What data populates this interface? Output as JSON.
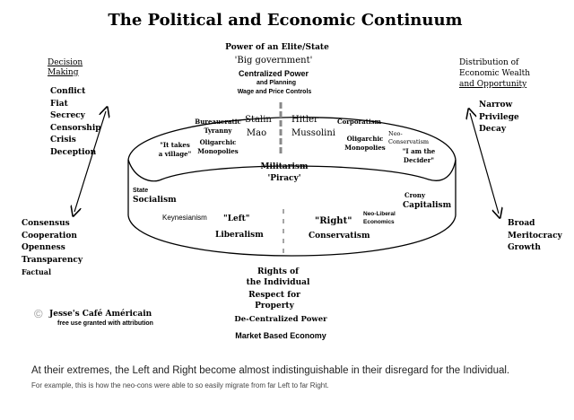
{
  "title": "The Political and Economic Continuum",
  "top_axis": {
    "line1": "Power of an Elite/State",
    "line2": "'Big government'",
    "line3": "Centralized Power",
    "line4": "and Planning",
    "line5": "Wage and Price Controls"
  },
  "bottom_axis": {
    "line1": "Rights of",
    "line2": "the Individual",
    "line3": "Respect for",
    "line4": "Property",
    "line5": "De-Centralized Power",
    "line6": "Market Based Economy"
  },
  "left_panel": {
    "heading1": "Decision",
    "heading2": "Making",
    "top_items": [
      "Conflict",
      "Fiat",
      "Secrecy",
      "Censorship",
      "Crisis",
      "Deception"
    ],
    "bottom_items": [
      "Consensus",
      "Cooperation",
      "Openness",
      "Transparency",
      "Factual"
    ]
  },
  "right_panel": {
    "heading1": "Distribution of",
    "heading2": "Economic Wealth",
    "heading3": "and Opportunity",
    "top_items": [
      "Narrow",
      "Privilege",
      "Decay"
    ],
    "bottom_items": [
      "Broad",
      "Meritocracy",
      "Growth"
    ]
  },
  "cylinder": {
    "it_takes_1": "\"It takes",
    "it_takes_2": "a village\"",
    "bureaucratic_1": "Bureaucratic",
    "bureaucratic_2": "Tyranny",
    "oligarchic_left_1": "Oligarchic",
    "oligarchic_left_2": "Monopolies",
    "stalin": "Stalin",
    "mao": "Mao",
    "hitler": "Hitler",
    "mussolini": "Mussolini",
    "corporatism": "Corporatism",
    "oligarchic_right_1": "Oligarchic",
    "oligarchic_right_2": "Monopolies",
    "neocon_1": "Neo-",
    "neocon_2": "Conservatism",
    "decider_1": "\"I am the",
    "decider_2": "Decider\"",
    "militarism": "Militarism",
    "piracy": "'Piracy'",
    "state": "State",
    "socialism": "Socialism",
    "crony": "Crony",
    "capitalism": "Capitalism",
    "keynesianism": "Keynesianism",
    "left": "\"Left\"",
    "liberalism": "Liberalism",
    "right": "\"Right\"",
    "neoliberal_1": "Neo-Liberal",
    "neoliberal_2": "Economics",
    "conservatism": "Conservatism"
  },
  "credit": {
    "copyright_symbol": "©",
    "name": "Jesse's Café Américain",
    "note": "free use granted with attribution"
  },
  "caption": {
    "main": "At their extremes, the Left and Right become almost indistinguishable in their disregard for the Individual.",
    "sub": "For example, this is how the neo-cons were able to so easily migrate from far Left to far Right."
  }
}
